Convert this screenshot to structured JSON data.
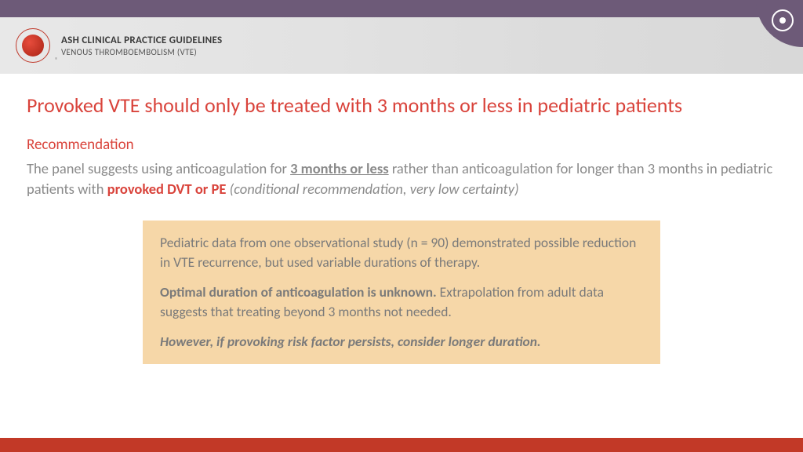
{
  "colors": {
    "purple_bar": "#6d5a78",
    "header_band_bg": "#e2e2e2",
    "title_red": "#d9433b",
    "body_gray": "#8a8a8a",
    "callout_bg": "#f6d7a8",
    "callout_text": "#7a7a7a",
    "bottom_bar": "#c23927",
    "logo_red": "#c0392b"
  },
  "header": {
    "org_line1": "ASH CLINICAL PRACTICE GUIDELINES",
    "org_line2": "VENOUS THROMBOEMBOLISM (VTE)",
    "reg_mark": "®"
  },
  "title": "Provoked VTE should only be treated with 3 months or less in pediatric patients",
  "recommendation_label": "Recommendation",
  "body": {
    "pre": "The panel suggests using anticoagulation for ",
    "emph1": "3 months or less",
    "mid1": " rather than anticoagulation for longer than 3 months in pediatric patients with ",
    "emph2": "provoked DVT or PE",
    "space": " ",
    "italic_tail": "(conditional recommendation, very low certainty)"
  },
  "callout": {
    "p1": "Pediatric data from one observational study (n = 90) demonstrated possible reduction in VTE recurrence, but used variable durations of therapy.",
    "p2_bold": "Optimal duration of anticoagulation is unknown.",
    "p2_rest": " Extrapolation from adult data suggests that treating beyond 3 months not needed.",
    "p3": "However, if provoking risk factor persists, consider longer duration."
  }
}
